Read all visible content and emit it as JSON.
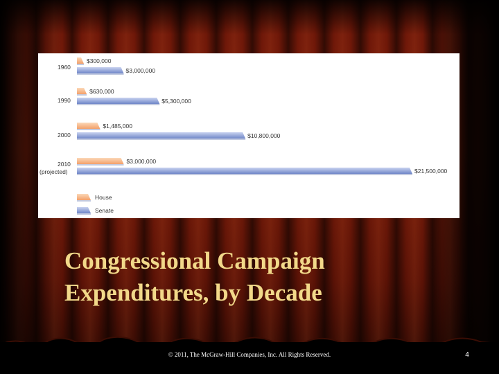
{
  "slide": {
    "title_line1": "Congressional Campaign",
    "title_line2": "Expenditures, by Decade",
    "copyright": "© 2011, The McGraw-Hill Companies, Inc. All Rights Reserved.",
    "page_number": "4"
  },
  "colors": {
    "house": "#f3a06a",
    "senate": "#6f86c8",
    "title": "#f2d98a"
  },
  "chart_data": {
    "type": "bar",
    "orientation": "horizontal",
    "categories": [
      {
        "line1": "1960",
        "line2": ""
      },
      {
        "line1": "1990",
        "line2": ""
      },
      {
        "line1": "2000",
        "line2": ""
      },
      {
        "line1": "2010",
        "line2": "(projected)"
      }
    ],
    "series": [
      {
        "name": "House",
        "values": [
          300000,
          630000,
          1485000,
          3000000
        ],
        "labels": [
          "$300,000",
          "$630,000",
          "$1,485,000",
          "$3,000,000"
        ]
      },
      {
        "name": "Senate",
        "values": [
          3000000,
          5300000,
          10800000,
          21500000
        ],
        "labels": [
          "$3,000,000",
          "$5,300,000",
          "$10,800,000",
          "$21,500,000"
        ]
      }
    ],
    "legend": {
      "position": "bottom-left",
      "entries": [
        "House",
        "Senate"
      ]
    }
  }
}
